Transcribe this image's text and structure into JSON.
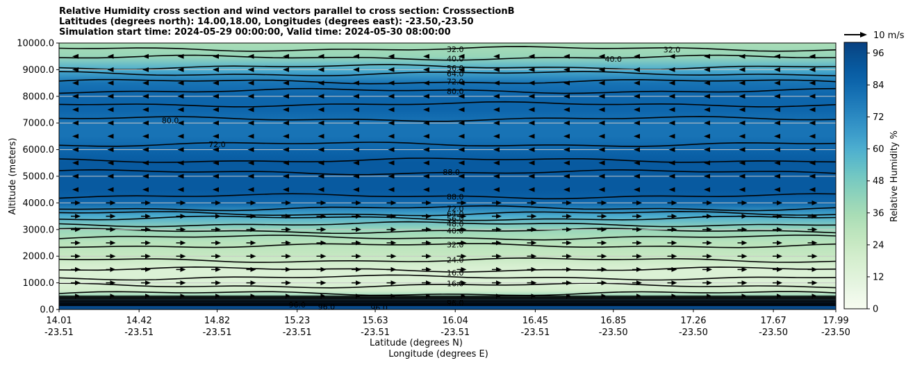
{
  "chart_data": {
    "type": "heatmap",
    "title_lines": [
      "Relative Humidity cross section and wind vectors parallel to cross section: CrosssectionB",
      "Latitudes (degrees north): 14.00,18.00, Longitudes (degrees east): -23.50,-23.50",
      "Simulation start time: 2024-05-29 00:00:00, Valid time: 2024-05-30 08:00:00"
    ],
    "ylabel": "Altitude (meters)",
    "xlabel_lines": [
      "Latitude (degrees N)",
      "Longitude (degrees E)"
    ],
    "ylim": [
      0,
      10000
    ],
    "yticks": [
      "0.0",
      "1000.0",
      "2000.0",
      "3000.0",
      "4000.0",
      "5000.0",
      "6000.0",
      "7000.0",
      "8000.0",
      "9000.0",
      "10000.0"
    ],
    "xticks": [
      {
        "lat": "14.01",
        "lon": "-23.51"
      },
      {
        "lat": "14.42",
        "lon": "-23.51"
      },
      {
        "lat": "14.82",
        "lon": "-23.51"
      },
      {
        "lat": "15.23",
        "lon": "-23.51"
      },
      {
        "lat": "15.63",
        "lon": "-23.51"
      },
      {
        "lat": "16.04",
        "lon": "-23.51"
      },
      {
        "lat": "16.45",
        "lon": "-23.51"
      },
      {
        "lat": "16.85",
        "lon": "-23.50"
      },
      {
        "lat": "17.26",
        "lon": "-23.50"
      },
      {
        "lat": "17.67",
        "lon": "-23.50"
      },
      {
        "lat": "17.99",
        "lon": "-23.50"
      }
    ],
    "colorbar": {
      "label": "Relative Humidity %",
      "range": [
        0,
        100
      ],
      "ticks": [
        "0",
        "12",
        "24",
        "36",
        "48",
        "60",
        "72",
        "84",
        "96"
      ],
      "colors": [
        "#f7fcf0",
        "#eef8e9",
        "#e4f4df",
        "#dbf1d5",
        "#d2edcc",
        "#c6e8c2",
        "#b9e3bc",
        "#a9ddb6",
        "#98d6b9",
        "#85cfbd",
        "#72c7c3",
        "#5ebbc9",
        "#4daecf",
        "#3e9ecb",
        "#3190c5",
        "#2481bd",
        "#1873b5",
        "#0d65ab",
        "#085aa0",
        "#084f90",
        "#084081"
      ]
    },
    "profile": [
      {
        "z": 0,
        "rh": 96
      },
      {
        "z": 250,
        "rh": 100
      },
      {
        "z": 500,
        "rh": 40
      },
      {
        "z": 700,
        "rh": 18
      },
      {
        "z": 1000,
        "rh": 14
      },
      {
        "z": 1500,
        "rh": 17
      },
      {
        "z": 2000,
        "rh": 24
      },
      {
        "z": 2500,
        "rh": 30
      },
      {
        "z": 3000,
        "rh": 42
      },
      {
        "z": 3500,
        "rh": 62
      },
      {
        "z": 4000,
        "rh": 84
      },
      {
        "z": 4500,
        "rh": 90
      },
      {
        "z": 5000,
        "rh": 92
      },
      {
        "z": 5500,
        "rh": 91
      },
      {
        "z": 6000,
        "rh": 86
      },
      {
        "z": 6500,
        "rh": 78
      },
      {
        "z": 7000,
        "rh": 82
      },
      {
        "z": 7500,
        "rh": 86
      },
      {
        "z": 8000,
        "rh": 84
      },
      {
        "z": 8500,
        "rh": 78
      },
      {
        "z": 9000,
        "rh": 60
      },
      {
        "z": 9500,
        "rh": 42
      },
      {
        "z": 10000,
        "rh": 34
      }
    ],
    "contour_labels": [
      {
        "text": "32.0",
        "x": 16.04,
        "z": 9760
      },
      {
        "text": "40.0",
        "x": 16.04,
        "z": 9420
      },
      {
        "text": "56.0",
        "x": 16.04,
        "z": 9060
      },
      {
        "text": "64.0",
        "x": 16.04,
        "z": 8860
      },
      {
        "text": "72.0",
        "x": 16.04,
        "z": 8560
      },
      {
        "text": "80.0",
        "x": 16.04,
        "z": 8190
      },
      {
        "text": "32.0",
        "x": 17.15,
        "z": 9750
      },
      {
        "text": "40.0",
        "x": 16.85,
        "z": 9400
      },
      {
        "text": "80.0",
        "x": 14.58,
        "z": 7100
      },
      {
        "text": "72.0",
        "x": 14.82,
        "z": 6200
      },
      {
        "text": "88.0",
        "x": 16.02,
        "z": 5160
      },
      {
        "text": "88.0",
        "x": 16.04,
        "z": 4230
      },
      {
        "text": "72.0",
        "x": 16.04,
        "z": 3790
      },
      {
        "text": "64.0",
        "x": 16.04,
        "z": 3590
      },
      {
        "text": "56.0",
        "x": 16.04,
        "z": 3410
      },
      {
        "text": "48.0",
        "x": 16.04,
        "z": 3210
      },
      {
        "text": "40.0",
        "x": 16.04,
        "z": 2960
      },
      {
        "text": "32.0",
        "x": 16.04,
        "z": 2430
      },
      {
        "text": "24.0",
        "x": 16.04,
        "z": 1860
      },
      {
        "text": "16.0",
        "x": 16.04,
        "z": 1380
      },
      {
        "text": "16.0",
        "x": 16.04,
        "z": 980
      },
      {
        "text": "96.0",
        "x": 16.04,
        "z": 250
      },
      {
        "text": "96.0",
        "x": 15.23,
        "z": 180
      },
      {
        "text": "96.0",
        "x": 15.38,
        "z": 100
      },
      {
        "text": "96.0",
        "x": 15.65,
        "z": 60
      }
    ],
    "wind_key": "10 m/s",
    "wind_rows": [
      {
        "z": 9500,
        "dir": "left"
      },
      {
        "z": 9000,
        "dir": "left"
      },
      {
        "z": 8500,
        "dir": "left"
      },
      {
        "z": 8000,
        "dir": "left"
      },
      {
        "z": 7500,
        "dir": "left"
      },
      {
        "z": 7000,
        "dir": "left"
      },
      {
        "z": 6500,
        "dir": "left"
      },
      {
        "z": 6000,
        "dir": "left"
      },
      {
        "z": 5500,
        "dir": "left"
      },
      {
        "z": 5000,
        "dir": "left"
      },
      {
        "z": 4500,
        "dir": "left"
      },
      {
        "z": 4000,
        "dir": "right"
      },
      {
        "z": 3500,
        "dir": "right"
      },
      {
        "z": 3000,
        "dir": "right"
      },
      {
        "z": 2500,
        "dir": "right"
      },
      {
        "z": 2000,
        "dir": "right"
      },
      {
        "z": 1500,
        "dir": "right"
      },
      {
        "z": 1000,
        "dir": "right"
      },
      {
        "z": 500,
        "dir": "right"
      }
    ]
  }
}
